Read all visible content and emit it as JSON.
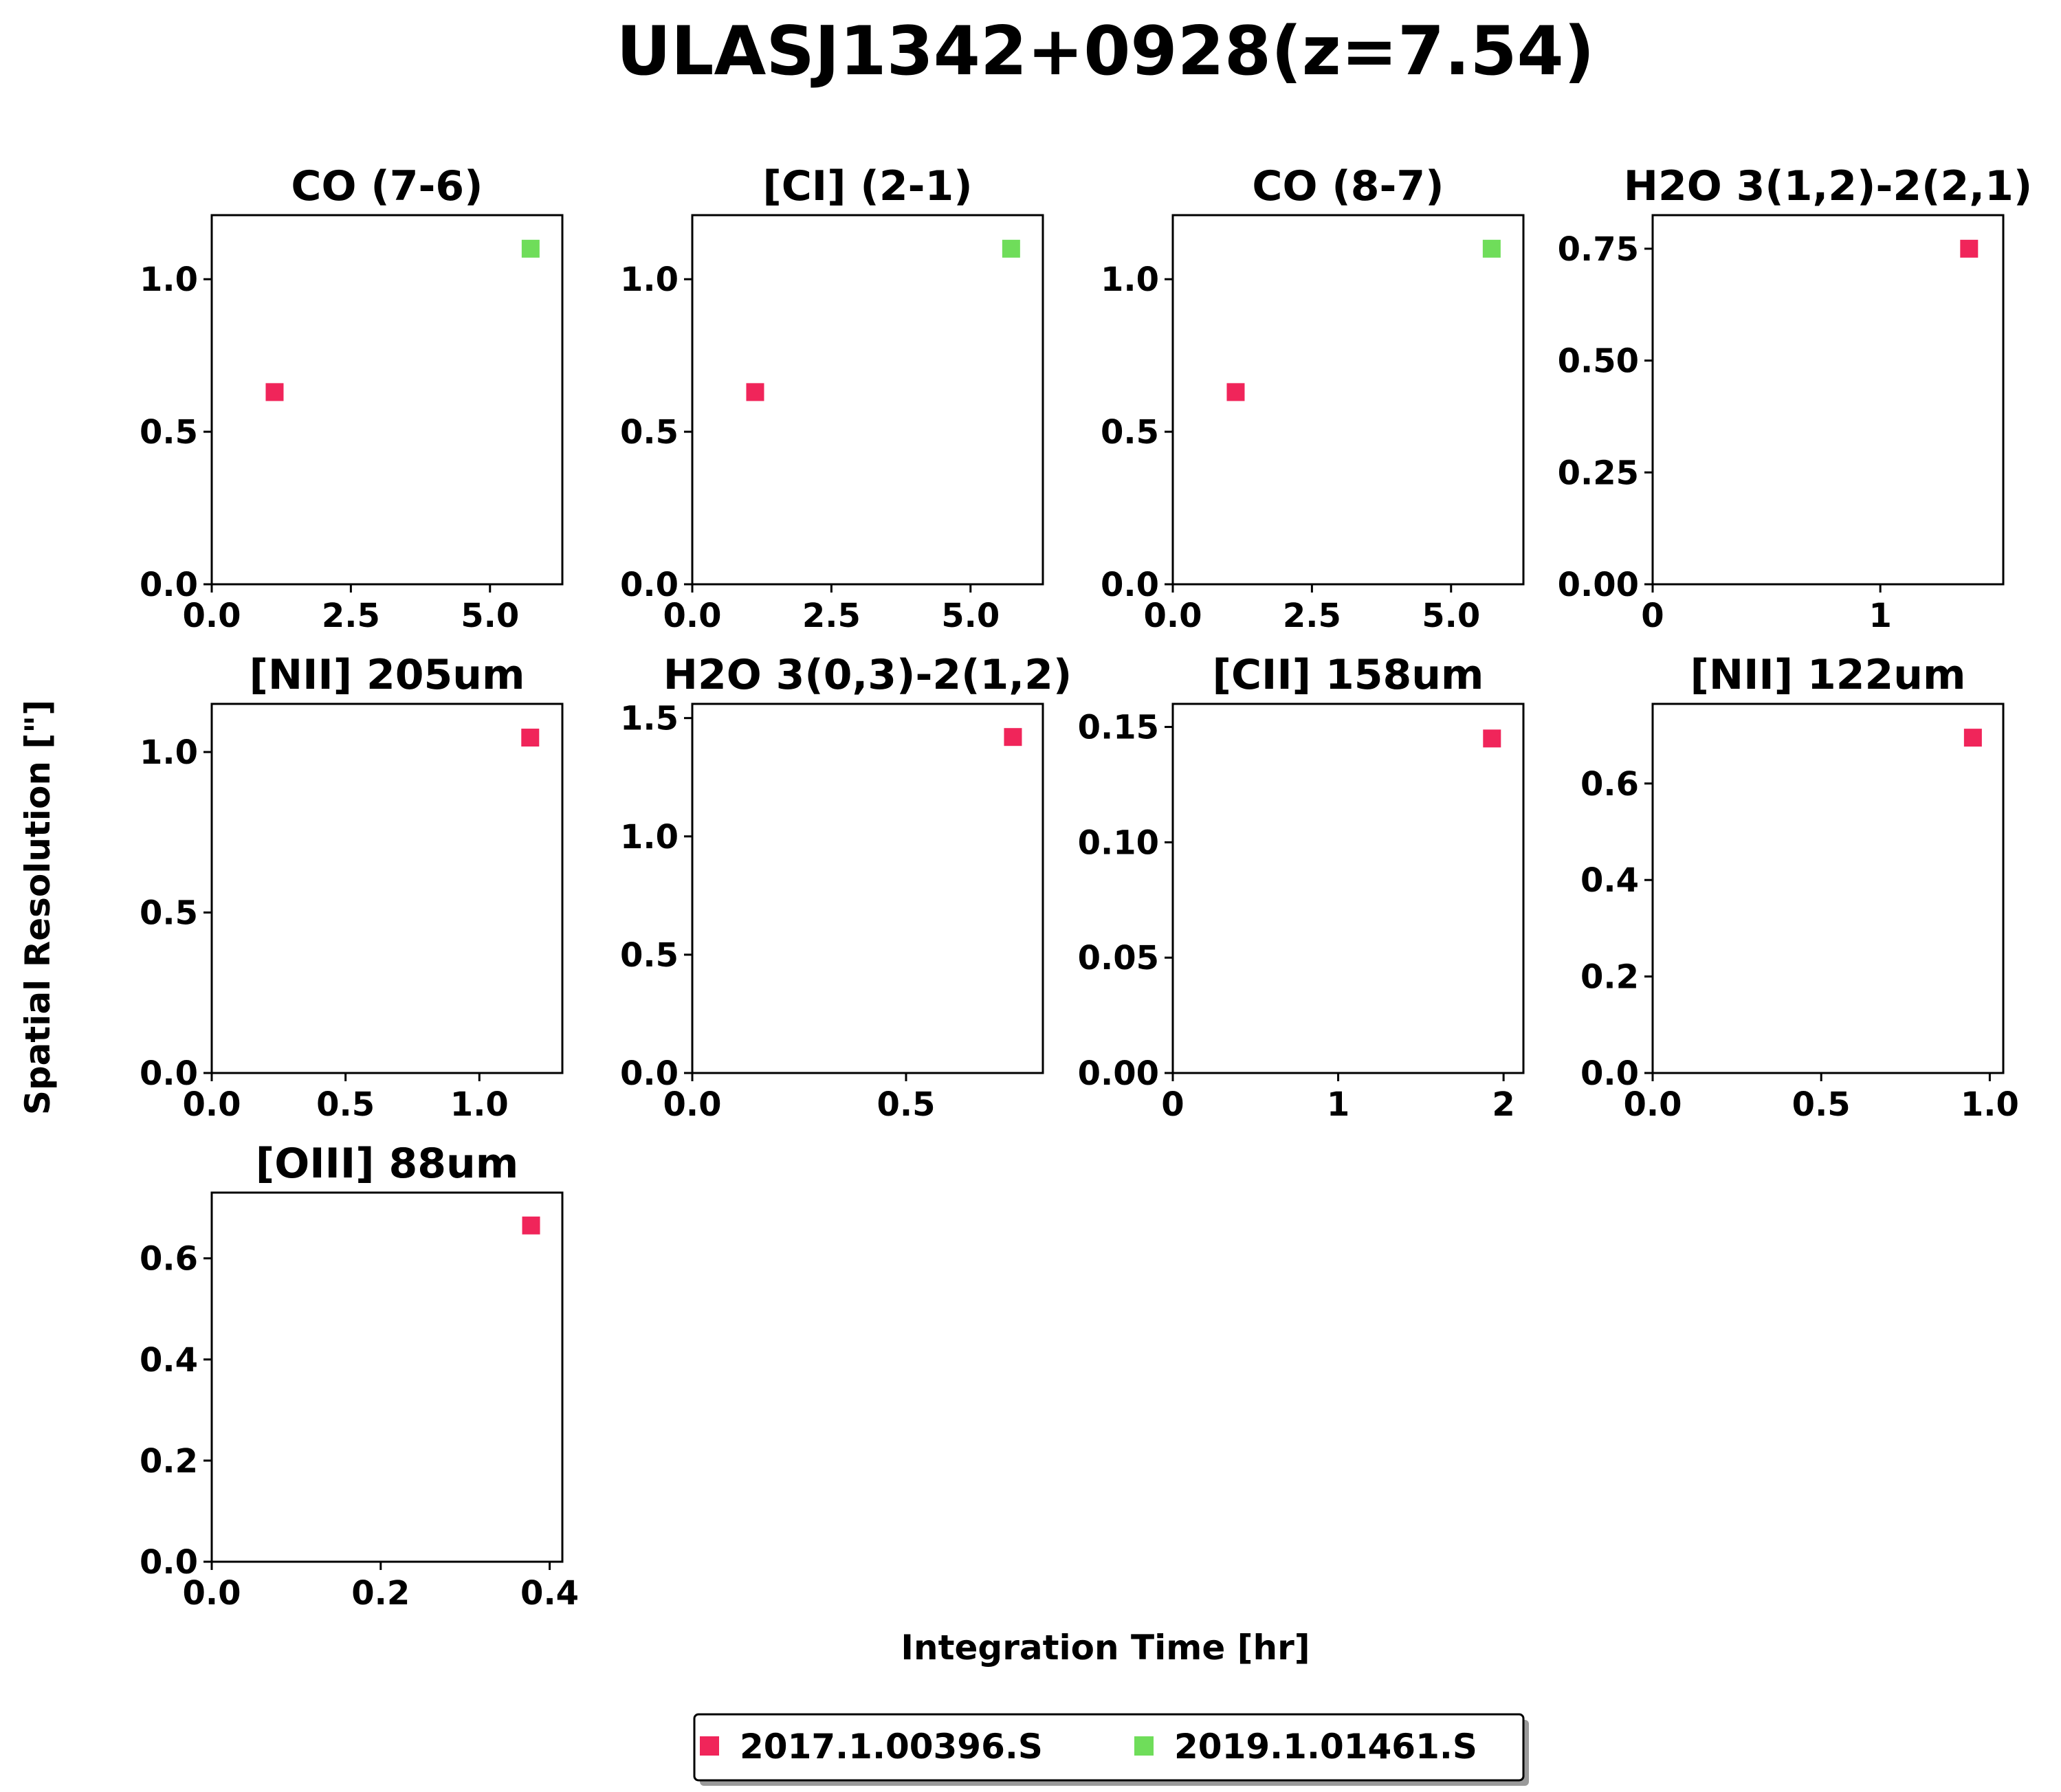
{
  "chart_data": {
    "type": "scatter",
    "title": "ULASJ1342+0928(z=7.54)",
    "xlabel": "Integration Time [hr]",
    "ylabel": "Spatial Resolution [\"]",
    "grid": false,
    "legend_position": "bottom-center",
    "series": [
      {
        "name": "2017.1.00396.S",
        "color": "#f0255a"
      },
      {
        "name": "2019.1.01461.S",
        "color": "#6fdd5a"
      }
    ],
    "panels": [
      {
        "title": "CO (7-6)",
        "xlim": [
          0,
          6.3
        ],
        "ylim": [
          0,
          1.21
        ],
        "xticks": [
          {
            "v": 0,
            "l": "0.0"
          },
          {
            "v": 2.5,
            "l": "2.5"
          },
          {
            "v": 5.0,
            "l": "5.0"
          }
        ],
        "yticks": [
          {
            "v": 0,
            "l": "0.0"
          },
          {
            "v": 0.5,
            "l": "0.5"
          },
          {
            "v": 1.0,
            "l": "1.0"
          }
        ],
        "points": [
          {
            "s": 0,
            "x": 1.13,
            "y": 0.63
          },
          {
            "s": 1,
            "x": 5.73,
            "y": 1.1
          }
        ]
      },
      {
        "title": "[CI] (2-1)",
        "xlim": [
          0,
          6.3
        ],
        "ylim": [
          0,
          1.21
        ],
        "xticks": [
          {
            "v": 0,
            "l": "0.0"
          },
          {
            "v": 2.5,
            "l": "2.5"
          },
          {
            "v": 5.0,
            "l": "5.0"
          }
        ],
        "yticks": [
          {
            "v": 0,
            "l": "0.0"
          },
          {
            "v": 0.5,
            "l": "0.5"
          },
          {
            "v": 1.0,
            "l": "1.0"
          }
        ],
        "points": [
          {
            "s": 0,
            "x": 1.13,
            "y": 0.63
          },
          {
            "s": 1,
            "x": 5.73,
            "y": 1.1
          }
        ]
      },
      {
        "title": "CO (8-7)",
        "xlim": [
          0,
          6.3
        ],
        "ylim": [
          0,
          1.21
        ],
        "xticks": [
          {
            "v": 0,
            "l": "0.0"
          },
          {
            "v": 2.5,
            "l": "2.5"
          },
          {
            "v": 5.0,
            "l": "5.0"
          }
        ],
        "yticks": [
          {
            "v": 0,
            "l": "0.0"
          },
          {
            "v": 0.5,
            "l": "0.5"
          },
          {
            "v": 1.0,
            "l": "1.0"
          }
        ],
        "points": [
          {
            "s": 0,
            "x": 1.13,
            "y": 0.63
          },
          {
            "s": 1,
            "x": 5.73,
            "y": 1.1
          }
        ]
      },
      {
        "title": "H2O 3(1,2)-2(2,1)",
        "xlim": [
          0,
          1.54
        ],
        "ylim": [
          0,
          0.825
        ],
        "xticks": [
          {
            "v": 0,
            "l": "0"
          },
          {
            "v": 1,
            "l": "1"
          }
        ],
        "yticks": [
          {
            "v": 0,
            "l": "0.00"
          },
          {
            "v": 0.25,
            "l": "0.25"
          },
          {
            "v": 0.5,
            "l": "0.50"
          },
          {
            "v": 0.75,
            "l": "0.75"
          }
        ],
        "points": [
          {
            "s": 0,
            "x": 1.39,
            "y": 0.75
          }
        ]
      },
      {
        "title": "[NII] 205um",
        "xlim": [
          0,
          1.31
        ],
        "ylim": [
          0,
          1.15
        ],
        "xticks": [
          {
            "v": 0,
            "l": "0.0"
          },
          {
            "v": 0.5,
            "l": "0.5"
          },
          {
            "v": 1.0,
            "l": "1.0"
          }
        ],
        "yticks": [
          {
            "v": 0,
            "l": "0.0"
          },
          {
            "v": 0.5,
            "l": "0.5"
          },
          {
            "v": 1.0,
            "l": "1.0"
          }
        ],
        "points": [
          {
            "s": 0,
            "x": 1.19,
            "y": 1.045
          }
        ]
      },
      {
        "title": "H2O 3(0,3)-2(1,2)",
        "xlim": [
          0,
          0.82
        ],
        "ylim": [
          0,
          1.56
        ],
        "xticks": [
          {
            "v": 0,
            "l": "0.0"
          },
          {
            "v": 0.5,
            "l": "0.5"
          }
        ],
        "yticks": [
          {
            "v": 0,
            "l": "0.0"
          },
          {
            "v": 0.5,
            "l": "0.5"
          },
          {
            "v": 1.0,
            "l": "1.0"
          },
          {
            "v": 1.5,
            "l": "1.5"
          }
        ],
        "points": [
          {
            "s": 0,
            "x": 0.75,
            "y": 1.42
          }
        ]
      },
      {
        "title": "[CII] 158um",
        "xlim": [
          0,
          2.12
        ],
        "ylim": [
          0,
          0.16
        ],
        "xticks": [
          {
            "v": 0,
            "l": "0"
          },
          {
            "v": 1,
            "l": "1"
          },
          {
            "v": 2,
            "l": "2"
          }
        ],
        "yticks": [
          {
            "v": 0,
            "l": "0.00"
          },
          {
            "v": 0.05,
            "l": "0.05"
          },
          {
            "v": 0.1,
            "l": "0.10"
          },
          {
            "v": 0.15,
            "l": "0.15"
          }
        ],
        "points": [
          {
            "s": 0,
            "x": 1.93,
            "y": 0.145
          }
        ]
      },
      {
        "title": "[NII] 122um",
        "xlim": [
          0,
          1.04
        ],
        "ylim": [
          0,
          0.765
        ],
        "xticks": [
          {
            "v": 0,
            "l": "0.0"
          },
          {
            "v": 0.5,
            "l": "0.5"
          },
          {
            "v": 1.0,
            "l": "1.0"
          }
        ],
        "yticks": [
          {
            "v": 0,
            "l": "0.0"
          },
          {
            "v": 0.2,
            "l": "0.2"
          },
          {
            "v": 0.4,
            "l": "0.4"
          },
          {
            "v": 0.6,
            "l": "0.6"
          }
        ],
        "points": [
          {
            "s": 0,
            "x": 0.95,
            "y": 0.695
          }
        ]
      },
      {
        "title": "[OIII] 88um",
        "xlim": [
          0,
          0.415
        ],
        "ylim": [
          0,
          0.73
        ],
        "xticks": [
          {
            "v": 0,
            "l": "0.0"
          },
          {
            "v": 0.2,
            "l": "0.2"
          },
          {
            "v": 0.4,
            "l": "0.4"
          }
        ],
        "yticks": [
          {
            "v": 0,
            "l": "0.0"
          },
          {
            "v": 0.2,
            "l": "0.2"
          },
          {
            "v": 0.4,
            "l": "0.4"
          },
          {
            "v": 0.6,
            "l": "0.6"
          }
        ],
        "points": [
          {
            "s": 0,
            "x": 0.378,
            "y": 0.665
          }
        ]
      }
    ]
  }
}
